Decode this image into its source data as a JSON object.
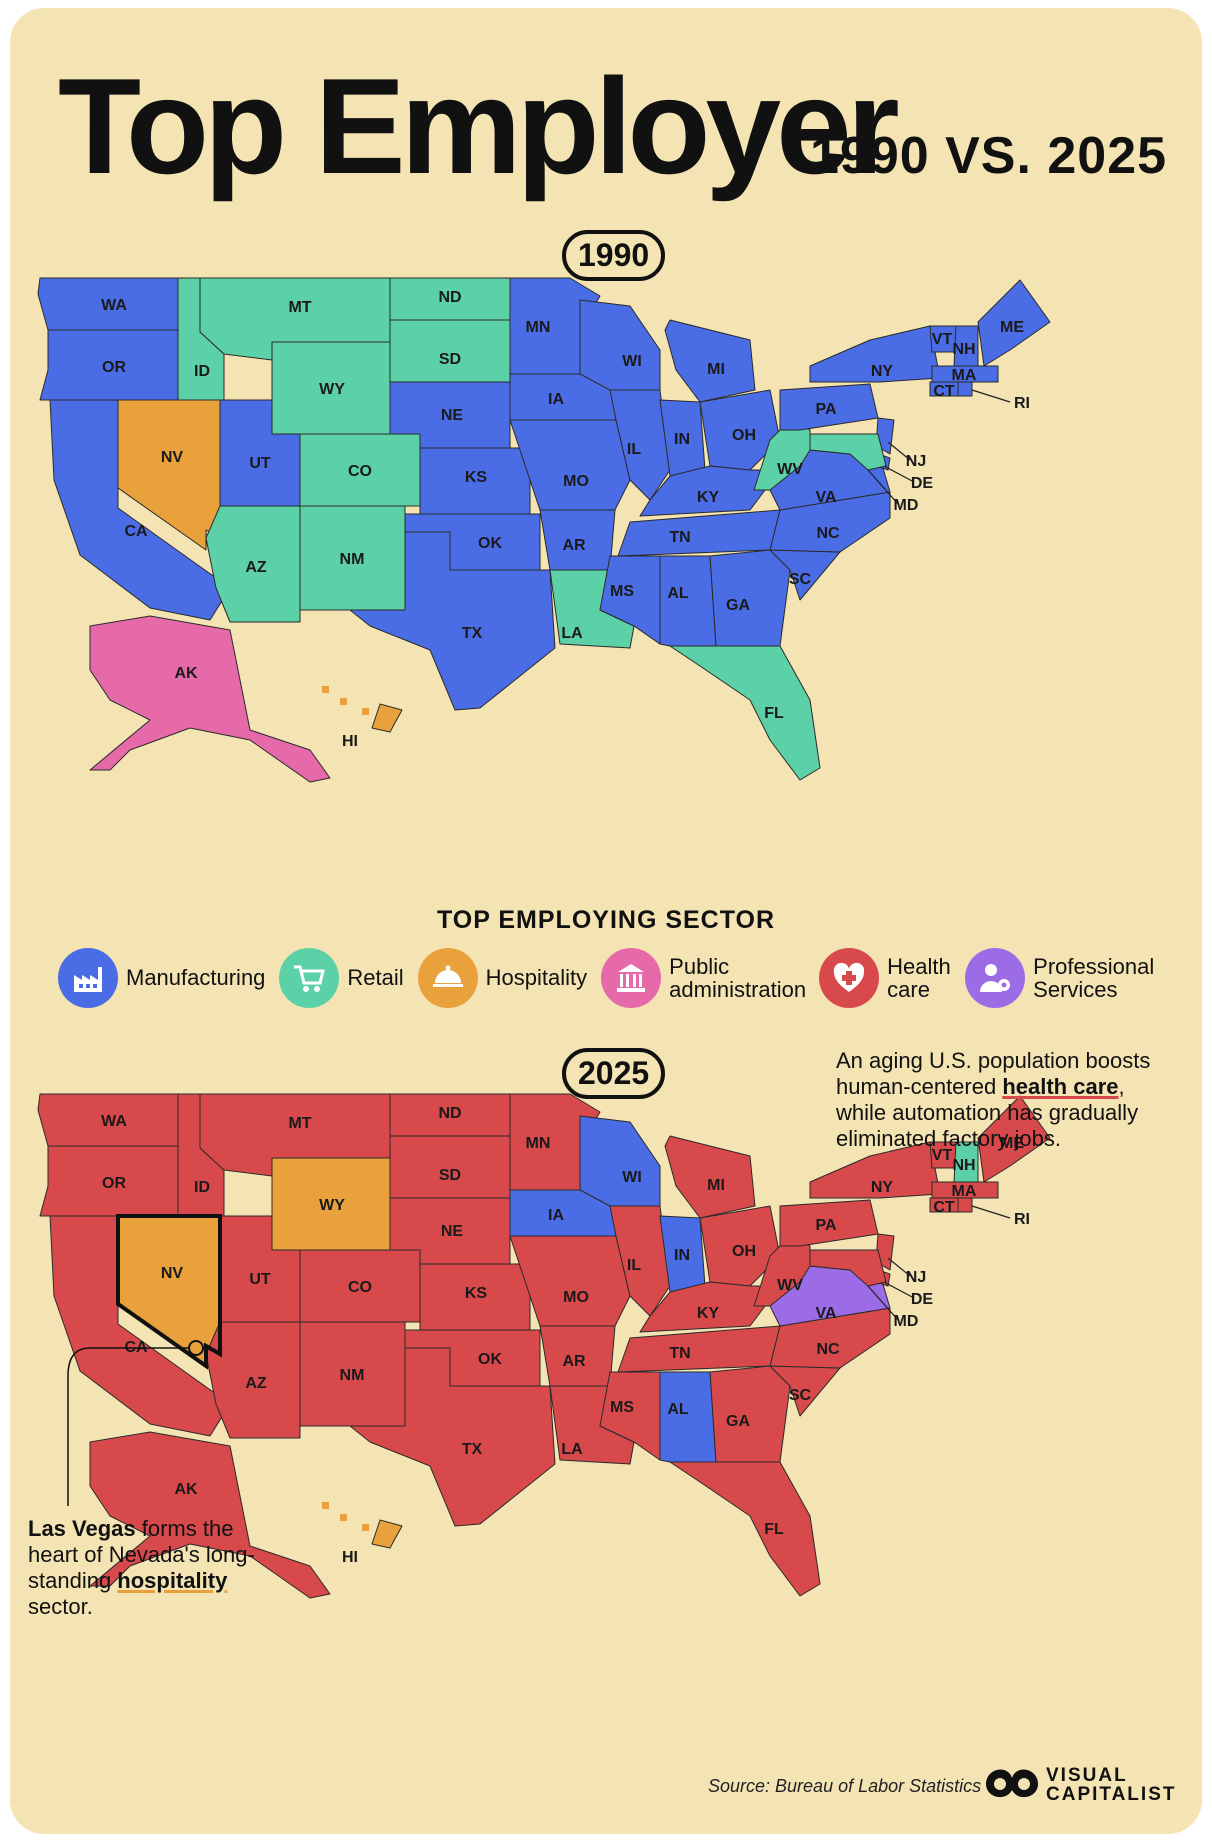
{
  "header": {
    "title": "Top Employer",
    "subtitle": "1990 VS. 2025"
  },
  "maps": [
    {
      "year": "1990"
    },
    {
      "year": "2025"
    }
  ],
  "legend": {
    "title": "TOP EMPLOYING SECTOR",
    "items": [
      {
        "label": "Manufacturing",
        "color": "#4a6de6",
        "icon": "factory-icon"
      },
      {
        "label": "Retail",
        "color": "#5cd1a7",
        "icon": "shopping-cart-icon"
      },
      {
        "label": "Hospitality",
        "color": "#e9a23b",
        "icon": "serving-cloche-icon"
      },
      {
        "label": "Public administration",
        "color": "#e66aaa",
        "icon": "government-building-icon"
      },
      {
        "label": "Health care",
        "color": "#d8494b",
        "icon": "medical-cross-icon"
      },
      {
        "label": "Professional Services",
        "color": "#9c6ce6",
        "icon": "professional-gear-icon"
      }
    ]
  },
  "states": {
    "1990": {
      "Manufacturing": [
        "WA",
        "OR",
        "CA",
        "UT",
        "NE",
        "KS",
        "OK",
        "TX",
        "MN",
        "IA",
        "MO",
        "AR",
        "WI",
        "IL",
        "MI",
        "IN",
        "OH",
        "KY",
        "TN",
        "MS",
        "AL",
        "GA",
        "SC",
        "NC",
        "VA",
        "PA",
        "NY",
        "VT",
        "NH",
        "ME",
        "MA",
        "CT",
        "RI",
        "NJ",
        "DE"
      ],
      "Retail": [
        "MT",
        "ID",
        "WY",
        "ND",
        "SD",
        "CO",
        "AZ",
        "NM",
        "LA",
        "FL",
        "WV",
        "MD"
      ],
      "Hospitality": [
        "NV",
        "HI"
      ],
      "Public administration": [
        "AK"
      ]
    },
    "2025": {
      "Health care": [
        "WA",
        "OR",
        "CA",
        "ID",
        "MT",
        "UT",
        "AZ",
        "CO",
        "NM",
        "ND",
        "SD",
        "NE",
        "KS",
        "OK",
        "TX",
        "MN",
        "MO",
        "AR",
        "LA",
        "IL",
        "MI",
        "OH",
        "KY",
        "TN",
        "MS",
        "GA",
        "SC",
        "NC",
        "FL",
        "WV",
        "PA",
        "NY",
        "VT",
        "ME",
        "MA",
        "CT",
        "RI",
        "NJ",
        "DE",
        "MD",
        "AK"
      ],
      "Manufacturing": [
        "WI",
        "IA",
        "IN",
        "AL"
      ],
      "Hospitality": [
        "WY",
        "NV",
        "HI"
      ],
      "Retail": [
        "NH"
      ],
      "Professional Services": [
        "VA"
      ]
    }
  },
  "annotations": {
    "health": {
      "pre": "An aging U.S. population boosts human-centered ",
      "bold": "health care",
      "post": ", while automation has gradually eliminated factory jobs."
    },
    "vegas": {
      "bold1": "Las Vegas",
      "mid": " forms the heart of Nevada's long-standing ",
      "bold2": "hospitality",
      "post": " sector."
    }
  },
  "source": "Source: Bureau of Labor Statistics",
  "brand": {
    "line1": "VISUAL",
    "line2": "CAPITALIST"
  }
}
